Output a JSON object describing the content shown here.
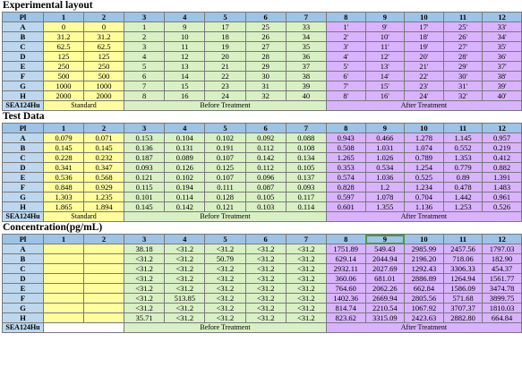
{
  "sections": [
    {
      "title": "Experimental layout",
      "header": [
        "Pl",
        "1",
        "2",
        "3",
        "4",
        "5",
        "6",
        "7",
        "8",
        "9",
        "10",
        "11",
        "12"
      ],
      "rows": [
        {
          "label": "A",
          "cells": [
            "0",
            "0",
            "1",
            "9",
            "17",
            "25",
            "33",
            "1'",
            "9'",
            "17'",
            "25'",
            "33'"
          ]
        },
        {
          "label": "B",
          "cells": [
            "31.2",
            "31.2",
            "2",
            "10",
            "18",
            "26",
            "34",
            "2'",
            "10'",
            "18'",
            "26'",
            "34'"
          ]
        },
        {
          "label": "C",
          "cells": [
            "62.5",
            "62.5",
            "3",
            "11",
            "19",
            "27",
            "35",
            "3'",
            "11'",
            "19'",
            "27'",
            "35'"
          ]
        },
        {
          "label": "D",
          "cells": [
            "125",
            "125",
            "4",
            "12",
            "20",
            "28",
            "36",
            "4'",
            "12'",
            "20'",
            "28'",
            "36'"
          ]
        },
        {
          "label": "E",
          "cells": [
            "250",
            "250",
            "5",
            "13",
            "21",
            "29",
            "37",
            "5'",
            "13'",
            "21'",
            "29'",
            "37'"
          ]
        },
        {
          "label": "F",
          "cells": [
            "500",
            "500",
            "6",
            "14",
            "22",
            "30",
            "38",
            "6'",
            "14'",
            "22'",
            "30'",
            "38'"
          ]
        },
        {
          "label": "G",
          "cells": [
            "1000",
            "1000",
            "7",
            "15",
            "23",
            "31",
            "39",
            "7'",
            "15'",
            "23'",
            "31'",
            "39'"
          ]
        },
        {
          "label": "H",
          "cells": [
            "2000",
            "2000",
            "8",
            "16",
            "24",
            "32",
            "40",
            "8'",
            "16'",
            "24'",
            "32'",
            "40'"
          ]
        }
      ],
      "footer": {
        "label": "SEA124Hu",
        "standard": "Standard",
        "before": "Before Treatment",
        "after": "After Treatment"
      }
    },
    {
      "title": "Test Data",
      "header": [
        "Pl",
        "1",
        "2",
        "3",
        "4",
        "5",
        "6",
        "7",
        "8",
        "9",
        "10",
        "11",
        "12"
      ],
      "rows": [
        {
          "label": "A",
          "cells": [
            "0.079",
            "0.071",
            "0.153",
            "0.104",
            "0.102",
            "0.092",
            "0.088",
            "0.943",
            "0.466",
            "1.278",
            "1.145",
            "0.957"
          ]
        },
        {
          "label": "B",
          "cells": [
            "0.145",
            "0.145",
            "0.136",
            "0.131",
            "0.191",
            "0.112",
            "0.108",
            "0.508",
            "1.031",
            "1.074",
            "0.552",
            "0.219"
          ]
        },
        {
          "label": "C",
          "cells": [
            "0.228",
            "0.232",
            "0.187",
            "0.089",
            "0.107",
            "0.142",
            "0.134",
            "1.265",
            "1.026",
            "0.789",
            "1.353",
            "0.412"
          ]
        },
        {
          "label": "D",
          "cells": [
            "0.341",
            "0.347",
            "0.093",
            "0.126",
            "0.125",
            "0.112",
            "0.105",
            "0.353",
            "0.534",
            "1.254",
            "0.779",
            "0.882"
          ]
        },
        {
          "label": "E",
          "cells": [
            "0.536",
            "0.568",
            "0.121",
            "0.102",
            "0.107",
            "0.096",
            "0.137",
            "0.574",
            "1.036",
            "0.525",
            "0.89",
            "1.391"
          ]
        },
        {
          "label": "F",
          "cells": [
            "0.848",
            "0.929",
            "0.115",
            "0.194",
            "0.111",
            "0.087",
            "0.093",
            "0.828",
            "1.2",
            "1.234",
            "0.478",
            "1.483"
          ]
        },
        {
          "label": "G",
          "cells": [
            "1.303",
            "1.235",
            "0.101",
            "0.114",
            "0.128",
            "0.105",
            "0.117",
            "0.597",
            "1.078",
            "0.704",
            "1.442",
            "0.961"
          ]
        },
        {
          "label": "H",
          "cells": [
            "1.865",
            "1.894",
            "0.145",
            "0.142",
            "0.121",
            "0.103",
            "0.114",
            "0.601",
            "1.355",
            "1.136",
            "1.253",
            "0.526"
          ]
        }
      ],
      "footer": {
        "label": "SEA124Hu",
        "standard": "Standard",
        "before": "Before Treatment",
        "after": "After Treatment"
      }
    },
    {
      "title": "Concentration(pg/mL)",
      "header": [
        "Pl",
        "1",
        "2",
        "3",
        "4",
        "5",
        "6",
        "7",
        "8",
        "9",
        "10",
        "11",
        "12"
      ],
      "rows": [
        {
          "label": "A",
          "cells": [
            "",
            "",
            "38.18",
            "<31.2",
            "<31.2",
            "<31.2",
            "<31.2",
            "1751.89",
            "549.43",
            "2985.99",
            "2457.56",
            "1797.03"
          ]
        },
        {
          "label": "B",
          "cells": [
            "",
            "",
            "<31.2",
            "<31.2",
            "50.79",
            "<31.2",
            "<31.2",
            "629.14",
            "2044.94",
            "2196.20",
            "718.06",
            "182.90"
          ]
        },
        {
          "label": "C",
          "cells": [
            "",
            "",
            "<31.2",
            "<31.2",
            "<31.2",
            "<31.2",
            "<31.2",
            "2932.11",
            "2027.69",
            "1292.43",
            "3306.33",
            "454.37"
          ]
        },
        {
          "label": "D",
          "cells": [
            "",
            "",
            "<31.2",
            "<31.2",
            "<31.2",
            "<31.2",
            "<31.2",
            "360.06",
            "681.01",
            "2886.89",
            "1264.94",
            "1561.77"
          ]
        },
        {
          "label": "E",
          "cells": [
            "",
            "",
            "<31.2",
            "<31.2",
            "<31.2",
            "<31.2",
            "<31.2",
            "764.60",
            "2062.26",
            "662.84",
            "1586.09",
            "3474.78"
          ]
        },
        {
          "label": "F",
          "cells": [
            "",
            "",
            "<31.2",
            "513.85",
            "<31.2",
            "<31.2",
            "<31.2",
            "1402.36",
            "2669.94",
            "2805.56",
            "571.68",
            "3899.75"
          ]
        },
        {
          "label": "G",
          "cells": [
            "",
            "",
            "<31.2",
            "<31.2",
            "<31.2",
            "<31.2",
            "<31.2",
            "814.74",
            "2210.54",
            "1067.92",
            "3707.37",
            "1810.03"
          ]
        },
        {
          "label": "H",
          "cells": [
            "",
            "",
            "35.71",
            "<31.2",
            "<31.2",
            "<31.2",
            "<31.2",
            "823.62",
            "3315.09",
            "2423.63",
            "2882.80",
            "664.84"
          ]
        }
      ],
      "footer": {
        "label": "SEA124Hu",
        "standard": "",
        "before": "Before Treatment",
        "after": "After Treatment"
      }
    }
  ],
  "selected_cell": {
    "section": 2,
    "column": "9"
  },
  "colors": {
    "header": "#9dc3e6",
    "standard": "#fffd9c",
    "before": "#d8f0c4",
    "after": "#d9b3ff",
    "selection": "#4a9a3c"
  }
}
